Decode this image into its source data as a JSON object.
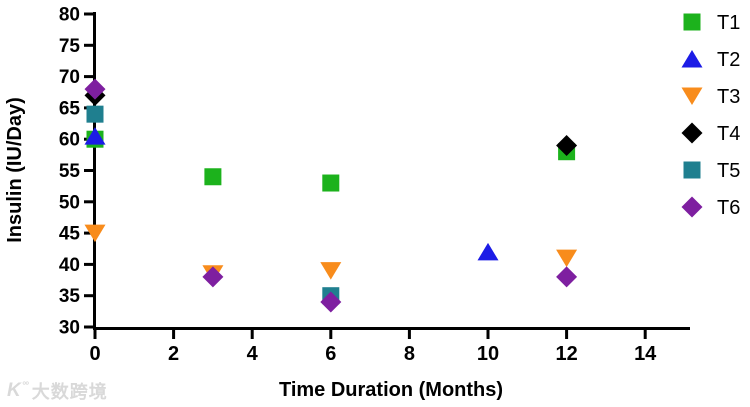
{
  "watermark": {
    "logo": "K",
    "logo_sup": "°°",
    "text": "大数跨境"
  },
  "chart_data": {
    "type": "scatter",
    "title": "",
    "xlabel": "Time Duration (Months)",
    "ylabel": "Insulin (IU/Day)",
    "xlim": [
      0,
      15.2
    ],
    "ylim": [
      30,
      80
    ],
    "x_ticks": [
      0,
      2,
      4,
      6,
      8,
      10,
      12,
      14
    ],
    "y_ticks": [
      30,
      35,
      40,
      45,
      50,
      55,
      60,
      65,
      70,
      75,
      80
    ],
    "grid": false,
    "legend_position": "right",
    "axis_color": "#000000",
    "series": [
      {
        "name": "T1",
        "marker": "square",
        "color": "#1CB21C",
        "points": [
          [
            0,
            60
          ],
          [
            3,
            54
          ],
          [
            6,
            53
          ],
          [
            12,
            58
          ]
        ]
      },
      {
        "name": "T2",
        "marker": "triangle-up",
        "color": "#1C1CE6",
        "points": [
          [
            0,
            60.5
          ],
          [
            10,
            42
          ]
        ]
      },
      {
        "name": "T3",
        "marker": "triangle-down",
        "color": "#F88C1C",
        "points": [
          [
            0,
            45
          ],
          [
            3,
            38.5
          ],
          [
            6,
            39
          ],
          [
            12,
            41
          ]
        ]
      },
      {
        "name": "T4",
        "marker": "diamond",
        "color": "#000000",
        "points": [
          [
            0,
            67
          ],
          [
            12,
            59
          ]
        ]
      },
      {
        "name": "T5",
        "marker": "square",
        "color": "#1F7F8F",
        "points": [
          [
            0,
            64
          ],
          [
            6,
            35
          ]
        ]
      },
      {
        "name": "T6",
        "marker": "diamond",
        "color": "#7E1FA0",
        "points": [
          [
            0,
            68
          ],
          [
            3,
            38
          ],
          [
            6,
            34
          ],
          [
            12,
            38
          ]
        ]
      }
    ]
  }
}
